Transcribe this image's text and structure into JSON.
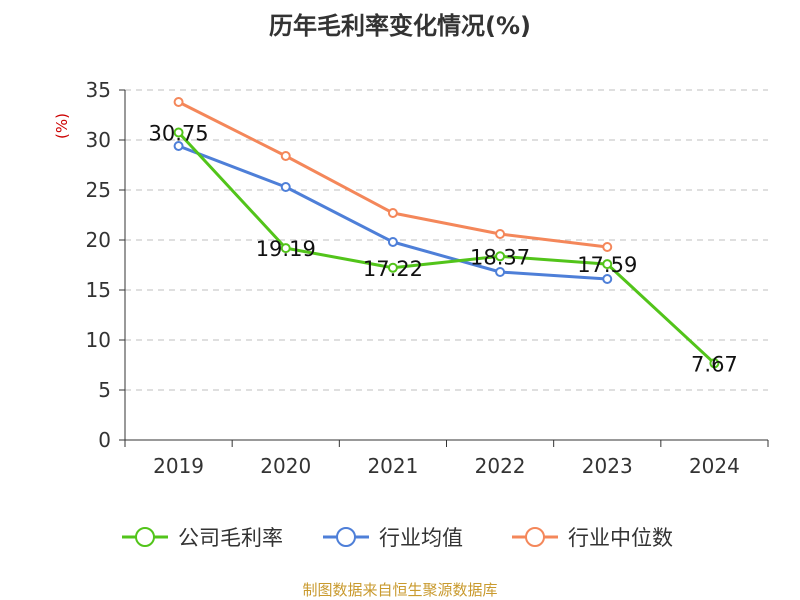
{
  "chart_data": {
    "type": "line",
    "title": "历年毛利率变化情况(%)",
    "ylabel": "(%)",
    "categories": [
      "2019",
      "2020",
      "2021",
      "2022",
      "2023",
      "2024"
    ],
    "ylim": [
      0,
      35
    ],
    "yticks": [
      0,
      5,
      10,
      15,
      20,
      25,
      30,
      35
    ],
    "grid": true,
    "legend_position": "bottom",
    "series": [
      {
        "name": "公司毛利率",
        "color": "#52c41a",
        "values": [
          30.75,
          19.19,
          17.22,
          18.37,
          17.59,
          7.67
        ],
        "labels": [
          "30.75",
          "19.19",
          "17.22",
          "18.37",
          "17.59",
          "7.67"
        ]
      },
      {
        "name": "行业均值",
        "color": "#4e7fd8",
        "values": [
          29.4,
          25.3,
          19.8,
          16.8,
          16.1,
          null
        ],
        "labels": null
      },
      {
        "name": "行业中位数",
        "color": "#f4875a",
        "values": [
          33.8,
          28.4,
          22.7,
          20.6,
          19.3,
          null
        ],
        "labels": null
      }
    ]
  },
  "source": "制图数据来自恒生聚源数据库"
}
